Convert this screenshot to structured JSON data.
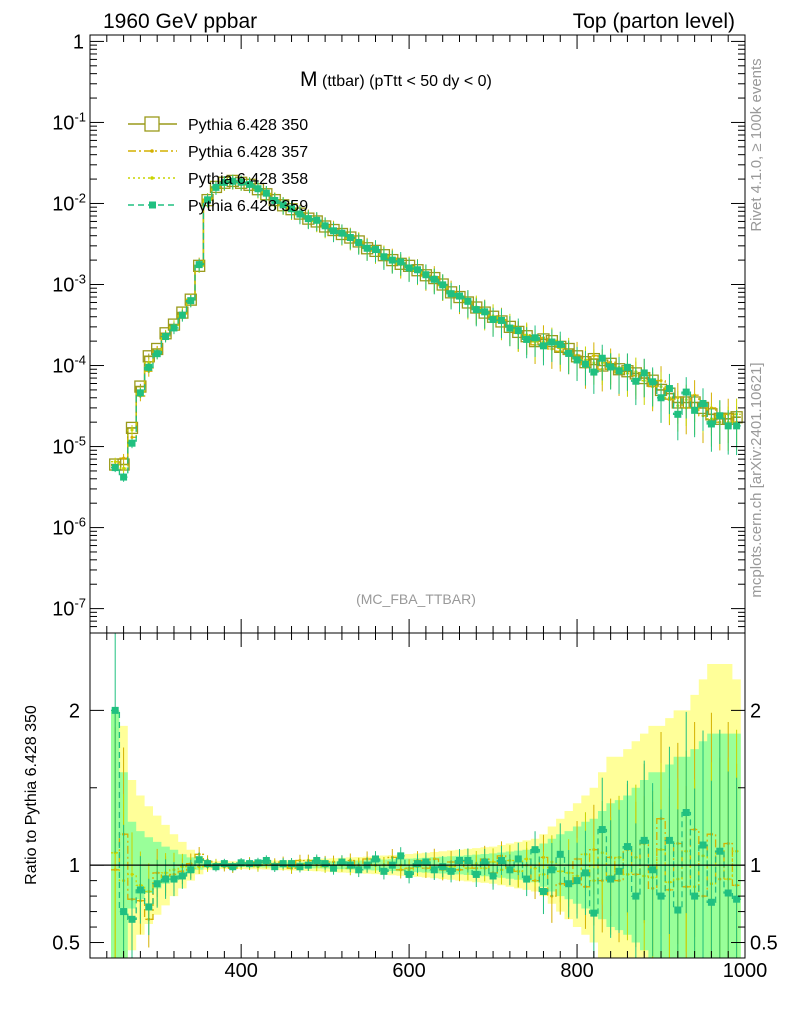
{
  "header": {
    "left": "1960 GeV ppbar",
    "right": "Top (parton level)"
  },
  "title": {
    "main": "M",
    "sub": "(ttbar) (pTtt < 50 dy < 0)"
  },
  "watermark": "(MC_FBA_TTBAR)",
  "side_text": {
    "top": "Rivet 4.1.0, ≥ 100k events",
    "bottom": "mcplots.cern.ch [arXiv:2401.10621]"
  },
  "ratio_ylabel": "Ratio to Pythia 6.428 350",
  "colors": {
    "s350": "#9a9a1a",
    "s357": "#d4b000",
    "s358": "#c8d400",
    "s359": "#20c080",
    "band_yellow": "#ffff99",
    "band_green": "#99ff99"
  },
  "chart_data": [
    {
      "type": "line",
      "panel": "main",
      "yscale": "log",
      "xlim": [
        220,
        1000
      ],
      "ylim": [
        5e-08,
        1.2
      ],
      "y_ticks": [
        "1",
        "10^-1",
        "10^-2",
        "10^-3",
        "10^-4",
        "10^-5",
        "10^-6",
        "10^-7"
      ],
      "legend_position": "top-left",
      "x": [
        250,
        260,
        270,
        280,
        290,
        300,
        310,
        320,
        330,
        340,
        350,
        360,
        370,
        380,
        390,
        400,
        410,
        420,
        430,
        440,
        450,
        460,
        470,
        480,
        490,
        500,
        510,
        520,
        530,
        540,
        550,
        560,
        570,
        580,
        590,
        600,
        610,
        620,
        630,
        640,
        650,
        660,
        670,
        680,
        690,
        700,
        710,
        720,
        730,
        740,
        750,
        760,
        770,
        780,
        790,
        800,
        810,
        820,
        830,
        840,
        850,
        860,
        870,
        880,
        890,
        900,
        910,
        920,
        930,
        940,
        950,
        960,
        970,
        980,
        990
      ],
      "series": [
        {
          "name": "Pythia 6.428 350",
          "values": [
            6e-06,
            6e-06,
            1.7e-05,
            5.5e-05,
            0.00013,
            0.00016,
            0.00025,
            0.00032,
            0.00045,
            0.00065,
            0.0017,
            0.011,
            0.016,
            0.018,
            0.019,
            0.018,
            0.017,
            0.015,
            0.013,
            0.011,
            0.0095,
            0.0085,
            0.0075,
            0.0065,
            0.006,
            0.0052,
            0.0047,
            0.0042,
            0.0038,
            0.0034,
            0.0028,
            0.0026,
            0.0023,
            0.002,
            0.0018,
            0.0017,
            0.0015,
            0.0013,
            0.0012,
            0.001,
            0.0008,
            0.0007,
            0.0006,
            0.00052,
            0.00045,
            0.0004,
            0.00035,
            0.0003,
            0.00026,
            0.00023,
            0.0002,
            0.00021,
            0.0002,
            0.00017,
            0.00016,
            0.00013,
            0.00011,
            0.00012,
            0.0001,
            0.000105,
            9e-05,
            8.5e-05,
            8e-05,
            7e-05,
            6.5e-05,
            5e-05,
            4.5e-05,
            3.5e-05,
            3.5e-05,
            3.5e-05,
            3e-05,
            2.5e-05,
            2.2e-05,
            2.2e-05,
            2.3e-05
          ]
        },
        {
          "name": "Pythia 6.428 357",
          "values": [
            5.8e-06,
            7.2e-06,
            1.3e-05,
            4.2e-05,
            8.5e-05,
            0.000152,
            0.000232,
            0.000301,
            0.000432,
            0.000657,
            0.00182,
            0.0113,
            0.0159,
            0.0178,
            0.0186,
            0.0182,
            0.0174,
            0.015,
            0.0133,
            0.0111,
            0.0097,
            0.0083,
            0.0077,
            0.0067,
            0.0061,
            0.0053,
            0.0048,
            0.0043,
            0.0039,
            0.0034,
            0.0029,
            0.0026,
            0.0023,
            0.0021,
            0.00175,
            0.00166,
            0.00154,
            0.00127,
            0.00125,
            0.00097,
            0.00082,
            0.00068,
            0.00062,
            0.00051,
            0.00047,
            0.00038,
            0.00037,
            0.00029,
            0.00025,
            0.00023,
            0.00018,
            0.00022,
            0.00016,
            0.00015,
            0.00014,
            0.000135,
            9.5e-05,
            0.000132,
            9e-05,
            0.00011,
            8.1e-05,
            9.4e-05,
            7.5e-05,
            8e-05,
            5.5e-05,
            6.5e-05,
            3.8e-05,
            4e-05,
            3e-05,
            4.3e-05,
            2.4e-05,
            3e-05,
            2e-05,
            2.5e-05,
            2e-05
          ]
        },
        {
          "name": "Pythia 6.428 358",
          "values": [
            6.5e-06,
            5.4e-06,
            1.6e-05,
            4.8e-05,
            0.000108,
            0.000142,
            0.000238,
            0.000312,
            0.000445,
            0.00064,
            0.00169,
            0.0109,
            0.0161,
            0.0181,
            0.0189,
            0.0181,
            0.0171,
            0.0148,
            0.0131,
            0.011,
            0.0095,
            0.0084,
            0.0075,
            0.0066,
            0.006,
            0.0051,
            0.0047,
            0.0042,
            0.0037,
            0.0034,
            0.0028,
            0.0026,
            0.0023,
            0.002,
            0.0018,
            0.00165,
            0.00148,
            0.0013,
            0.00118,
            0.00098,
            0.00079,
            0.00072,
            0.00059,
            0.00053,
            0.00044,
            0.00041,
            0.00034,
            0.00031,
            0.00025,
            0.00024,
            0.000196,
            0.000196,
            0.000205,
            0.000163,
            0.000152,
            0.000121,
            0.000118,
            0.000108,
            0.000108,
            9.8e-05,
            9.5e-05,
            8e-05,
            8.4e-05,
            6.5e-05,
            6e-05,
            5.5e-05,
            4e-05,
            3.2e-05,
            3.8e-05,
            3e-05,
            3.2e-05,
            2.2e-05,
            2.4e-05,
            2e-05,
            2.5e-05
          ]
        },
        {
          "name": "Pythia 6.428 359",
          "values": [
            5.5e-06,
            4.2e-06,
            1.1e-05,
            4.6e-05,
            9.5e-05,
            0.00014,
            0.000228,
            0.000291,
            0.000418,
            0.000632,
            0.00176,
            0.0111,
            0.0158,
            0.0182,
            0.0188,
            0.0183,
            0.0172,
            0.0152,
            0.0134,
            0.0109,
            0.0096,
            0.0086,
            0.0074,
            0.0065,
            0.0062,
            0.0053,
            0.0046,
            0.0043,
            0.0038,
            0.0033,
            0.0028,
            0.0027,
            0.0022,
            0.002,
            0.0019,
            0.0016,
            0.00152,
            0.00132,
            0.00116,
            0.00099,
            0.00077,
            0.00072,
            0.00062,
            0.00049,
            0.00046,
            0.00037,
            0.00036,
            0.00029,
            0.00027,
            0.00021,
            0.00022,
            0.000175,
            0.000195,
            0.000182,
            0.000141,
            0.000117,
            0.000104,
            8.3e-05,
            0.000123,
            9.6e-05,
            8.6e-05,
            9.5e-05,
            6.4e-05,
            8.1e-05,
            6.3e-05,
            4e-05,
            5.2e-05,
            2.5e-05,
            4.7e-05,
            2.8e-05,
            3.4e-05,
            1.9e-05,
            2.4e-05,
            1.8e-05,
            1.8e-05
          ]
        }
      ]
    },
    {
      "type": "line",
      "panel": "ratio",
      "ylabel": "Ratio to Pythia 6.428 350",
      "xlim": [
        220,
        1000
      ],
      "ylim": [
        0.4,
        2.5
      ],
      "x_ticks": [
        "400",
        "600",
        "800",
        "1000"
      ],
      "y_ticks": [
        "0.5",
        "1",
        "2"
      ],
      "x": [
        250,
        260,
        270,
        280,
        290,
        300,
        310,
        320,
        330,
        340,
        350,
        360,
        370,
        380,
        390,
        400,
        410,
        420,
        430,
        440,
        450,
        460,
        470,
        480,
        490,
        500,
        510,
        520,
        530,
        540,
        550,
        560,
        570,
        580,
        590,
        600,
        610,
        620,
        630,
        640,
        650,
        660,
        670,
        680,
        690,
        700,
        710,
        720,
        730,
        740,
        750,
        760,
        770,
        780,
        790,
        800,
        810,
        820,
        830,
        840,
        850,
        860,
        870,
        880,
        890,
        900,
        910,
        920,
        930,
        940,
        950,
        960,
        970,
        980,
        990
      ],
      "bands": {
        "yellow_halfwidth": [
          1.0,
          0.9,
          0.55,
          0.45,
          0.38,
          0.32,
          0.26,
          0.2,
          0.15,
          0.1,
          0.06,
          0.03,
          0.025,
          0.025,
          0.025,
          0.025,
          0.026,
          0.027,
          0.028,
          0.03,
          0.032,
          0.034,
          0.036,
          0.038,
          0.04,
          0.042,
          0.045,
          0.048,
          0.05,
          0.052,
          0.055,
          0.058,
          0.062,
          0.065,
          0.068,
          0.072,
          0.076,
          0.08,
          0.085,
          0.09,
          0.095,
          0.1,
          0.105,
          0.11,
          0.115,
          0.12,
          0.13,
          0.14,
          0.15,
          0.16,
          0.17,
          0.2,
          0.25,
          0.3,
          0.35,
          0.4,
          0.45,
          0.5,
          0.6,
          0.7,
          0.7,
          0.75,
          0.8,
          0.85,
          0.9,
          0.9,
          0.95,
          1.0,
          1.0,
          1.1,
          1.2,
          1.3,
          1.3,
          1.3,
          1.2
        ],
        "green_halfwidth": [
          1.0,
          0.6,
          0.28,
          0.22,
          0.18,
          0.15,
          0.12,
          0.1,
          0.07,
          0.05,
          0.03,
          0.015,
          0.012,
          0.012,
          0.012,
          0.012,
          0.013,
          0.014,
          0.015,
          0.016,
          0.017,
          0.018,
          0.019,
          0.02,
          0.021,
          0.022,
          0.024,
          0.026,
          0.028,
          0.03,
          0.032,
          0.034,
          0.036,
          0.038,
          0.04,
          0.042,
          0.045,
          0.048,
          0.051,
          0.054,
          0.057,
          0.06,
          0.064,
          0.068,
          0.072,
          0.076,
          0.082,
          0.088,
          0.094,
          0.1,
          0.11,
          0.14,
          0.17,
          0.2,
          0.22,
          0.25,
          0.28,
          0.3,
          0.35,
          0.4,
          0.42,
          0.45,
          0.5,
          0.55,
          0.6,
          0.6,
          0.65,
          0.7,
          0.7,
          0.75,
          0.8,
          0.85,
          0.85,
          0.85,
          0.85
        ]
      },
      "series": [
        {
          "name": "Pythia 6.428 357",
          "values": [
            0.97,
            1.2,
            0.78,
            0.77,
            0.65,
            0.95,
            0.93,
            0.94,
            0.96,
            1.01,
            1.07,
            1.03,
            0.99,
            0.99,
            0.98,
            1.01,
            1.02,
            1.0,
            1.02,
            1.01,
            1.02,
            0.98,
            1.03,
            1.03,
            1.02,
            1.02,
            1.02,
            1.02,
            1.03,
            1.0,
            1.04,
            1.0,
            1.0,
            1.05,
            0.97,
            0.98,
            1.03,
            0.98,
            1.04,
            0.97,
            1.02,
            0.97,
            1.03,
            0.98,
            1.04,
            0.95,
            1.06,
            0.97,
            0.96,
            1.0,
            0.9,
            1.05,
            0.8,
            0.88,
            0.87,
            1.04,
            0.86,
            1.1,
            0.9,
            1.05,
            0.9,
            1.1,
            0.94,
            1.14,
            0.85,
            1.3,
            0.84,
            1.14,
            0.86,
            1.23,
            0.8,
            1.2,
            0.91,
            1.14,
            0.87
          ]
        },
        {
          "name": "Pythia 6.428 358",
          "values": [
            1.08,
            0.9,
            0.94,
            0.87,
            0.83,
            0.89,
            0.95,
            0.97,
            0.99,
            0.98,
            0.99,
            0.99,
            1.01,
            1.0,
            0.99,
            1.0,
            1.0,
            0.99,
            1.01,
            1.0,
            1.0,
            0.99,
            1.0,
            1.01,
            1.0,
            0.99,
            1.0,
            1.0,
            0.98,
            1.0,
            1.0,
            1.0,
            1.0,
            1.0,
            1.0,
            0.97,
            0.99,
            1.0,
            0.98,
            0.98,
            0.99,
            1.03,
            0.98,
            1.01,
            0.98,
            1.02,
            0.97,
            1.03,
            0.96,
            1.04,
            0.98,
            0.94,
            1.02,
            0.96,
            0.95,
            0.93,
            1.07,
            0.9,
            1.08,
            0.93,
            1.05,
            0.94,
            1.05,
            0.93,
            0.92,
            1.1,
            0.89,
            0.91,
            1.09,
            0.86,
            1.06,
            0.88,
            1.09,
            0.91,
            1.09
          ]
        },
        {
          "name": "Pythia 6.428 359",
          "values": [
            2.0,
            0.7,
            0.65,
            0.84,
            0.73,
            0.88,
            0.91,
            0.91,
            0.93,
            0.97,
            1.035,
            1.01,
            0.99,
            1.01,
            0.99,
            1.015,
            1.01,
            1.015,
            1.03,
            0.99,
            1.01,
            1.01,
            0.99,
            1.0,
            1.03,
            1.01,
            0.98,
            1.02,
            1.0,
            0.97,
            1.0,
            1.04,
            0.96,
            1.0,
            1.06,
            0.94,
            1.01,
            1.02,
            0.97,
            0.99,
            0.96,
            1.03,
            1.03,
            0.94,
            1.02,
            0.93,
            1.03,
            0.97,
            1.04,
            0.91,
            1.1,
            0.83,
            0.97,
            1.07,
            0.88,
            0.9,
            0.95,
            0.69,
            1.23,
            0.91,
            0.96,
            1.12,
            0.8,
            1.16,
            0.97,
            0.8,
            1.16,
            0.71,
            1.34,
            0.8,
            1.13,
            0.76,
            1.09,
            0.82,
            0.78
          ]
        }
      ]
    }
  ]
}
